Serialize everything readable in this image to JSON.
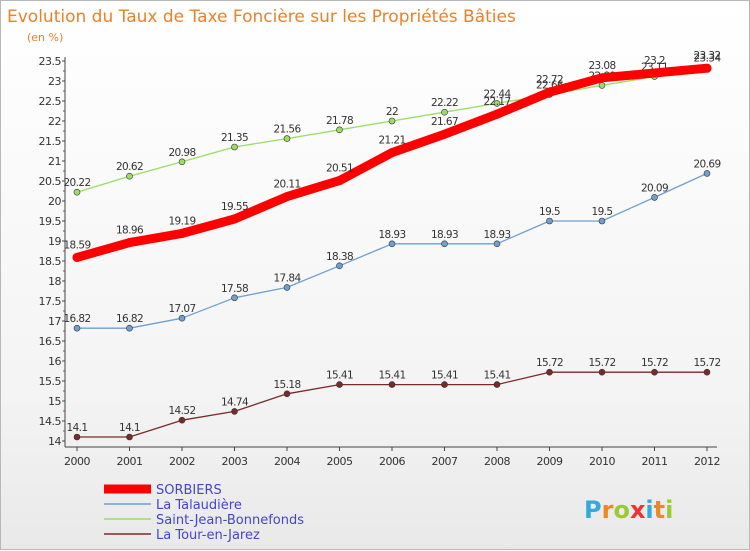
{
  "chart_data": {
    "type": "line",
    "title": "Evolution du Taux de Taxe Foncière sur les Propriétés Bâties",
    "unit_label": "(en %)",
    "x": [
      "2000",
      "2001",
      "2002",
      "2003",
      "2004",
      "2005",
      "2006",
      "2007",
      "2008",
      "2009",
      "2010",
      "2011",
      "2012"
    ],
    "ylim": [
      14,
      23.5
    ],
    "yticks": [
      "14",
      "14.5",
      "15",
      "15.5",
      "16",
      "16.5",
      "17",
      "17.5",
      "18",
      "18.5",
      "19",
      "19.5",
      "20",
      "20.5",
      "21",
      "21.5",
      "22",
      "22.5",
      "23",
      "23.5"
    ],
    "grid": false,
    "legend_position": "bottom-left",
    "series": [
      {
        "name": "SORBIERS",
        "color": "#ff0000",
        "values": [
          18.59,
          18.96,
          19.19,
          19.55,
          20.11,
          20.51,
          21.21,
          21.67,
          22.17,
          22.72,
          23.08,
          23.2,
          23.32
        ],
        "labels": [
          "18.59",
          "18.96",
          "19.19",
          "19.55",
          "20.11",
          "20.51",
          "21.21",
          "21.67",
          "22.17",
          "22.72",
          "23.08",
          "23.2",
          "23.32"
        ]
      },
      {
        "name": "La Talaudière",
        "color": "#6fa0cf",
        "values": [
          16.82,
          16.82,
          17.07,
          17.58,
          17.84,
          18.38,
          18.93,
          18.93,
          18.93,
          19.5,
          19.5,
          20.09,
          20.69
        ],
        "labels": [
          "16.82",
          "16.82",
          "17.07",
          "17.58",
          "17.84",
          "18.38",
          "18.93",
          "18.93",
          "18.93",
          "19.5",
          "19.5",
          "20.09",
          "20.69"
        ]
      },
      {
        "name": "Saint-Jean-Bonnefonds",
        "color": "#99dd66",
        "values": [
          20.22,
          20.62,
          20.98,
          21.35,
          21.56,
          21.78,
          22,
          22.22,
          22.44,
          22.66,
          22.89,
          23.11,
          23.34
        ],
        "labels": [
          "20.22",
          "20.62",
          "20.98",
          "21.35",
          "21.56",
          "21.78",
          "22",
          "22.22",
          "22.44",
          "22.66",
          "22.89",
          "23.11",
          "23.34"
        ]
      },
      {
        "name": "La Tour-en-Jarez",
        "color": "#7a2a2a",
        "values": [
          14.1,
          14.1,
          14.52,
          14.74,
          15.18,
          15.41,
          15.41,
          15.41,
          15.41,
          15.72,
          15.72,
          15.72,
          15.72
        ],
        "labels": [
          "14.1",
          "14.1",
          "14.52",
          "14.74",
          "15.18",
          "15.41",
          "15.41",
          "15.41",
          "15.41",
          "15.72",
          "15.72",
          "15.72",
          "15.72"
        ]
      }
    ]
  },
  "logo": {
    "text": "Proxiti",
    "colors": [
      "#33aadd",
      "#ee8822",
      "#99cc33",
      "#ee3333",
      "#33aadd",
      "#ee8822",
      "#99cc33"
    ]
  }
}
